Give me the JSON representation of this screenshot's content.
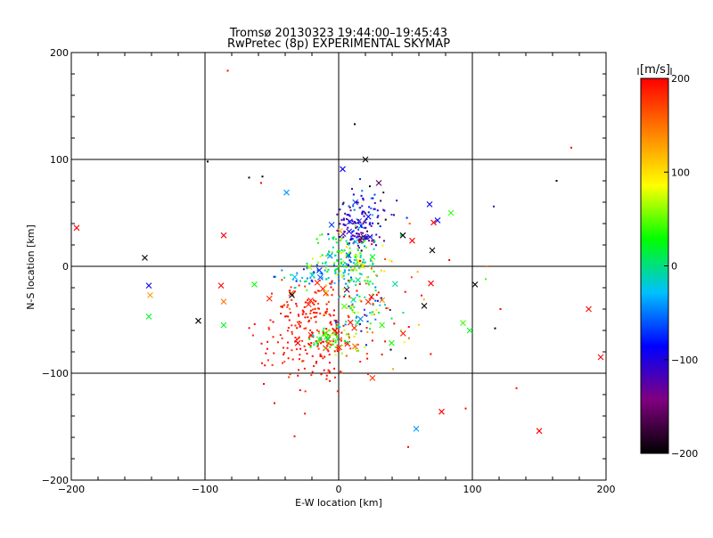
{
  "chart_data": {
    "type": "scatter",
    "title": "Tromsø 20130323 19:44:00–19:45:43",
    "subtitle": "RwPretec (8p) EXPERIMENTAL SKYMAP",
    "xlabel": "E-W location [km]",
    "ylabel": "N-S location [km]",
    "xlim": [
      -200,
      200
    ],
    "ylim": [
      -200,
      200
    ],
    "xticks": [
      "−200",
      "−100",
      "0",
      "100",
      "200"
    ],
    "yticks": [
      "−200",
      "−100",
      "0",
      "100",
      "200"
    ],
    "grid": true,
    "grid_lines_x": [
      -100,
      0,
      100
    ],
    "grid_lines_y": [
      -100,
      0,
      100
    ],
    "colorbar": {
      "label": "[m/s]",
      "min": -200,
      "max": 200,
      "tick_labels": [
        "200",
        "100",
        "0",
        "−100",
        "−200"
      ],
      "colormap": [
        "#000000",
        "#800080",
        "#0000ff",
        "#00c0ff",
        "#00ff00",
        "#ffff00",
        "#ff8000",
        "#ff0000"
      ]
    },
    "clusters": [
      {
        "cx": 18,
        "cy": 45,
        "sx": 12,
        "sy": 14,
        "n": 110,
        "v_mean": -110,
        "v_sd": 45
      },
      {
        "cx": 15,
        "cy": 27,
        "sx": 6,
        "sy": 4,
        "n": 55,
        "v_mean": -120,
        "v_sd": 20
      },
      {
        "cx": 5,
        "cy": 5,
        "sx": 14,
        "sy": 12,
        "n": 160,
        "v_mean": 20,
        "v_sd": 40
      },
      {
        "cx": -15,
        "cy": -8,
        "sx": 12,
        "sy": 6,
        "n": 50,
        "v_mean": -40,
        "v_sd": 30
      },
      {
        "cx": -20,
        "cy": -60,
        "sx": 20,
        "sy": 25,
        "n": 260,
        "v_mean": 190,
        "v_sd": 12
      },
      {
        "cx": -5,
        "cy": -68,
        "sx": 8,
        "sy": 6,
        "n": 55,
        "v_mean": 40,
        "v_sd": 25
      },
      {
        "cx": 18,
        "cy": -40,
        "sx": 12,
        "sy": 15,
        "n": 80,
        "v_mean": 0,
        "v_sd": 80
      },
      {
        "cx": 30,
        "cy": -30,
        "sx": 25,
        "sy": 30,
        "n": 60,
        "v_mean": 150,
        "v_sd": 60
      }
    ],
    "points": [
      {
        "x": -83,
        "y": 183,
        "v": 200,
        "m": "dot"
      },
      {
        "x": 12,
        "y": 133,
        "v": -200,
        "m": "dot"
      },
      {
        "x": 174,
        "y": 111,
        "v": 200,
        "m": "dot"
      },
      {
        "x": -98,
        "y": 98,
        "v": -200,
        "m": "dot"
      },
      {
        "x": 20,
        "y": 100,
        "v": -200,
        "m": "x"
      },
      {
        "x": 3,
        "y": 91,
        "v": -90,
        "m": "x"
      },
      {
        "x": -67,
        "y": 83,
        "v": -200,
        "m": "dot"
      },
      {
        "x": -57,
        "y": 84,
        "v": -200,
        "m": "dot"
      },
      {
        "x": -58,
        "y": 78,
        "v": 200,
        "m": "dot"
      },
      {
        "x": 163,
        "y": 80,
        "v": -200,
        "m": "dot"
      },
      {
        "x": 30,
        "y": 78,
        "v": -160,
        "m": "x"
      },
      {
        "x": -39,
        "y": 69,
        "v": -40,
        "m": "x"
      },
      {
        "x": 68,
        "y": 58,
        "v": -90,
        "m": "x"
      },
      {
        "x": 116,
        "y": 56,
        "v": -120,
        "m": "dot"
      },
      {
        "x": 74,
        "y": 43,
        "v": -90,
        "m": "x"
      },
      {
        "x": 84,
        "y": 50,
        "v": 40,
        "m": "x"
      },
      {
        "x": -196,
        "y": 36,
        "v": 200,
        "m": "x"
      },
      {
        "x": -86,
        "y": 29,
        "v": 200,
        "m": "x"
      },
      {
        "x": 71,
        "y": 41,
        "v": 200,
        "m": "x"
      },
      {
        "x": -145,
        "y": 8,
        "v": -200,
        "m": "x"
      },
      {
        "x": -142,
        "y": -18,
        "v": -90,
        "m": "x"
      },
      {
        "x": -141,
        "y": -27,
        "v": 130,
        "m": "x"
      },
      {
        "x": -142,
        "y": -47,
        "v": 20,
        "m": "x"
      },
      {
        "x": -105,
        "y": -51,
        "v": -200,
        "m": "x"
      },
      {
        "x": -86,
        "y": -33,
        "v": 150,
        "m": "x"
      },
      {
        "x": -88,
        "y": -18,
        "v": 200,
        "m": "x"
      },
      {
        "x": -86,
        "y": -55,
        "v": 20,
        "m": "x"
      },
      {
        "x": -63,
        "y": -17,
        "v": 30,
        "m": "x"
      },
      {
        "x": -35,
        "y": -27,
        "v": -200,
        "m": "x"
      },
      {
        "x": 69,
        "y": -16,
        "v": 200,
        "m": "x"
      },
      {
        "x": 48,
        "y": 29,
        "v": -200,
        "m": "x"
      },
      {
        "x": 55,
        "y": 24,
        "v": 200,
        "m": "x"
      },
      {
        "x": 70,
        "y": 15,
        "v": -200,
        "m": "x"
      },
      {
        "x": 102,
        "y": -17,
        "v": -200,
        "m": "x"
      },
      {
        "x": 110,
        "y": -12,
        "v": 40,
        "m": "dot"
      },
      {
        "x": 64,
        "y": -37,
        "v": -200,
        "m": "x"
      },
      {
        "x": 93,
        "y": -53,
        "v": 40,
        "m": "x"
      },
      {
        "x": 98,
        "y": -60,
        "v": 20,
        "m": "x"
      },
      {
        "x": 117,
        "y": -58,
        "v": -200,
        "m": "dot"
      },
      {
        "x": 121,
        "y": -40,
        "v": 200,
        "m": "dot"
      },
      {
        "x": 187,
        "y": -40,
        "v": 200,
        "m": "x"
      },
      {
        "x": 196,
        "y": -85,
        "v": 200,
        "m": "x"
      },
      {
        "x": 50,
        "y": -86,
        "v": -200,
        "m": "dot"
      },
      {
        "x": 39,
        "y": -78,
        "v": -200,
        "m": "dot"
      },
      {
        "x": 133,
        "y": -114,
        "v": 200,
        "m": "dot"
      },
      {
        "x": 77,
        "y": -136,
        "v": 200,
        "m": "x"
      },
      {
        "x": 95,
        "y": -133,
        "v": 200,
        "m": "dot"
      },
      {
        "x": 150,
        "y": -154,
        "v": 200,
        "m": "x"
      },
      {
        "x": 58,
        "y": -152,
        "v": -40,
        "m": "x"
      },
      {
        "x": 52,
        "y": -169,
        "v": 200,
        "m": "dot"
      },
      {
        "x": -33,
        "y": -159,
        "v": 200,
        "m": "dot"
      },
      {
        "x": -48,
        "y": -128,
        "v": 200,
        "m": "dot"
      },
      {
        "x": -56,
        "y": -110,
        "v": 200,
        "m": "dot"
      }
    ]
  }
}
